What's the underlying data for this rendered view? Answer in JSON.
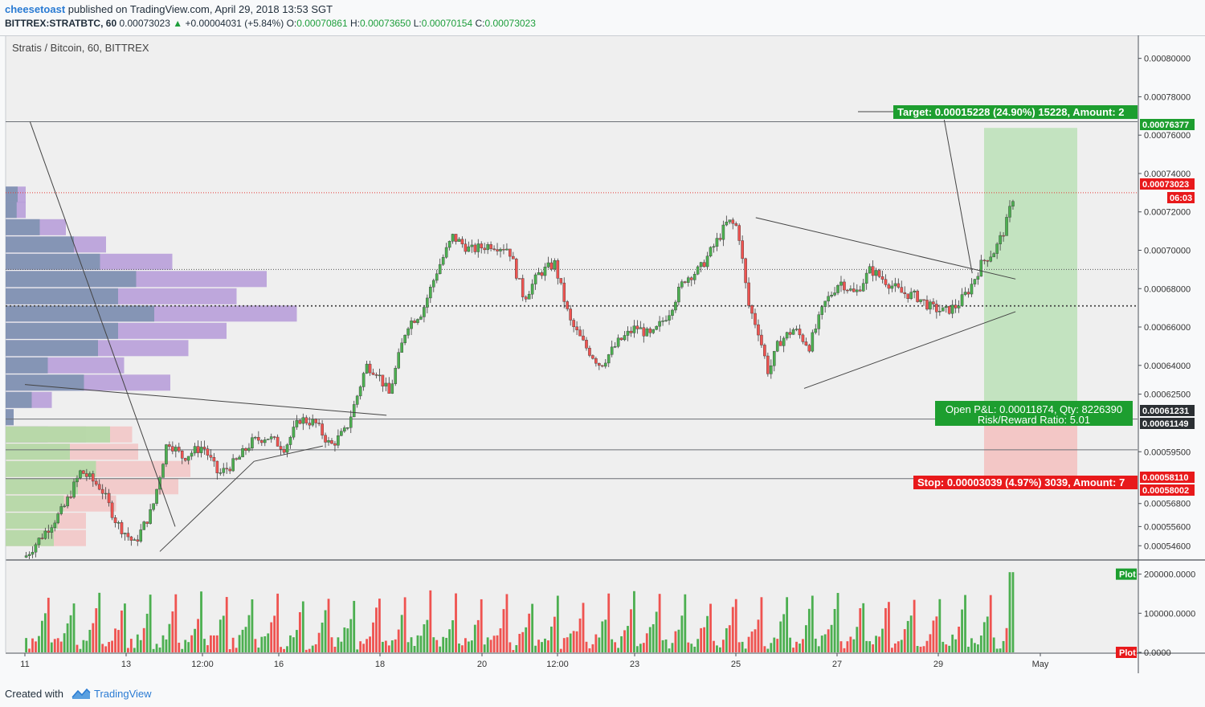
{
  "header": {
    "author": "cheesetoast",
    "published": "published on TradingView.com, April 29, 2018 13:53 SGT",
    "symbol": "BITTREX:STRATBTC, 60",
    "last": "0.00073023",
    "change": "+0.00004031 (+5.84%)",
    "o_label": "O:",
    "o": "0.00070861",
    "h_label": "H:",
    "h": "0.00073650",
    "l_label": "L:",
    "l": "0.00070154",
    "c_label": "C:",
    "c": "0.00073023"
  },
  "chart_title": "Stratis / Bitcoin, 60, BITTREX",
  "footer": {
    "created": "Created with",
    "brand": "TradingView"
  },
  "colors": {
    "up": "#4caf50",
    "down": "#ef5350",
    "target": "#1d9e2f",
    "stop": "#e8191b",
    "vp_blue": "#7e93b0",
    "vp_purple": "#b59ad8"
  },
  "chart_data": {
    "type": "candlestick",
    "price_axis": {
      "ticks": [
        "0.00080000",
        "0.00078000",
        "0.00076000",
        "0.00074000",
        "0.00072000",
        "0.00070000",
        "0.00068000",
        "0.00066000",
        "0.00064000",
        "0.00062500",
        "0.00059500",
        "0.00056800",
        "0.00055600",
        "0.00054600"
      ],
      "ylim": [
        0.000539,
        0.000812
      ]
    },
    "time_axis": [
      "11",
      "13",
      "12:00",
      "16",
      "18",
      "20",
      "12:00",
      "23",
      "25",
      "27",
      "29",
      "May"
    ],
    "price_labels": [
      {
        "text": "0.00076377",
        "style": "green"
      },
      {
        "text": "0.00073023",
        "style": "red"
      },
      {
        "text": "06:03",
        "style": "red"
      },
      {
        "text": "0.00061231",
        "style": "dark"
      },
      {
        "text": "0.00061149",
        "style": "dark"
      },
      {
        "text": "0.00058110",
        "style": "red"
      },
      {
        "text": "0.00058002",
        "style": "red"
      }
    ],
    "position": {
      "entry": 0.00061149,
      "target_price": 0.00076377,
      "stop_price": 0.0005811,
      "target_label": "Target: 0.00015228 (24.90%) 15228, Amount: 2",
      "stop_label": "Stop: 0.00003039 (4.97%) 3039, Amount: 7",
      "pnl_label": "Open P&L: 0.00011874, Qty: 8226390",
      "rr_label": "Risk/Reward Ratio: 5.01"
    },
    "price_path": [
      [
        0,
        0.00054
      ],
      [
        1.5,
        0.000565
      ],
      [
        2.2,
        0.000585
      ],
      [
        3,
        0.000576
      ],
      [
        3.6,
        0.000558
      ],
      [
        4.3,
        0.000547
      ],
      [
        5.0,
        0.000565
      ],
      [
        5.6,
        0.000601
      ],
      [
        6.2,
        0.000592
      ],
      [
        7,
        0.000598
      ],
      [
        7.6,
        0.000583
      ],
      [
        8.3,
        0.00059
      ],
      [
        8.9,
        0.0006
      ],
      [
        9.5,
        0.000603
      ],
      [
        10.2,
        0.000597
      ],
      [
        10.8,
        0.000612
      ],
      [
        11.4,
        0.00061
      ],
      [
        12.0,
        0.000598
      ],
      [
        12.6,
        0.000606
      ],
      [
        13.0,
        0.000622
      ],
      [
        13.4,
        0.00064
      ],
      [
        13.8,
        0.000637
      ],
      [
        14.3,
        0.000625
      ],
      [
        15.0,
        0.000661
      ],
      [
        15.6,
        0.000668
      ],
      [
        16.2,
        0.00069
      ],
      [
        16.8,
        0.000707
      ],
      [
        17.5,
        0.0007
      ],
      [
        18.3,
        0.000703
      ],
      [
        19.0,
        0.000701
      ],
      [
        19.6,
        0.000675
      ],
      [
        20.2,
        0.000688
      ],
      [
        20.8,
        0.000693
      ],
      [
        21.4,
        0.000663
      ],
      [
        22.0,
        0.00065
      ],
      [
        22.6,
        0.00064
      ],
      [
        23.3,
        0.000652
      ],
      [
        24.0,
        0.00066
      ],
      [
        24.6,
        0.000655
      ],
      [
        25.3,
        0.000668
      ],
      [
        25.9,
        0.000685
      ],
      [
        26.5,
        0.00069
      ],
      [
        27.1,
        0.000703
      ],
      [
        27.6,
        0.000715
      ],
      [
        28.0,
        0.000712
      ],
      [
        28.4,
        0.000672
      ],
      [
        28.8,
        0.000658
      ],
      [
        29.2,
        0.000636
      ],
      [
        29.6,
        0.000652
      ],
      [
        30.2,
        0.000659
      ],
      [
        30.8,
        0.00065
      ],
      [
        31.4,
        0.000672
      ],
      [
        32.0,
        0.000684
      ],
      [
        32.6,
        0.000677
      ],
      [
        33.2,
        0.00069
      ],
      [
        33.8,
        0.000684
      ],
      [
        34.4,
        0.000678
      ],
      [
        35.0,
        0.000676
      ],
      [
        35.6,
        0.00067
      ],
      [
        36.1,
        0.000668
      ],
      [
        36.6,
        0.000671
      ],
      [
        37.1,
        0.00068
      ],
      [
        37.6,
        0.000694
      ],
      [
        38.1,
        0.0007
      ],
      [
        38.5,
        0.000712
      ],
      [
        38.85,
        0.00073
      ]
    ],
    "lines": [
      {
        "from": [
          0.2,
          0.000767
        ],
        "to": [
          5.9,
          0.000556
        ]
      },
      {
        "from": [
          0,
          0.00063
        ],
        "to": [
          14.2,
          0.000614
        ]
      },
      {
        "from": [
          5.3,
          0.000543
        ],
        "to": [
          9.0,
          0.00059
        ]
      },
      {
        "from": [
          9.0,
          0.00059
        ],
        "to": [
          11.7,
          0.000598
        ]
      },
      {
        "from": [
          28.7,
          0.000717
        ],
        "to": [
          38.9,
          0.000685
        ]
      },
      {
        "from": [
          30.6,
          0.000628
        ],
        "to": [
          38.9,
          0.000668
        ]
      },
      {
        "from": [
          36.1,
          0.000768
        ],
        "to": [
          37.2,
          0.000688
        ]
      }
    ],
    "horizontal_levels": [
      0.000767,
      0.00073,
      0.00069,
      0.000671,
      0.000612,
      0.000596,
      0.000581
    ],
    "volume_axis": [
      "200000.0000",
      "100000.0000",
      "0.0000"
    ],
    "volume_ylim": [
      0,
      230000
    ],
    "volume_labels": [
      "Plot",
      "Plot"
    ],
    "volume_profile": [
      [
        0.000729,
        0.6,
        1.0
      ],
      [
        0.000721,
        0.55,
        1.0
      ],
      [
        0.000712,
        1.7,
        3.0
      ],
      [
        0.000703,
        3.4,
        5.0
      ],
      [
        0.000694,
        4.7,
        8.3
      ],
      [
        0.000685,
        6.5,
        13.0
      ],
      [
        0.000676,
        5.6,
        11.5
      ],
      [
        0.000667,
        7.4,
        14.5
      ],
      [
        0.000658,
        5.6,
        11.0
      ],
      [
        0.000649,
        4.6,
        9.1
      ],
      [
        0.00064,
        2.1,
        5.9
      ],
      [
        0.000631,
        3.9,
        8.2
      ],
      [
        0.000622,
        1.3,
        2.3
      ],
      [
        0.000613,
        0.4,
        0.4
      ],
      [
        0.000604,
        2.1,
        4.0
      ],
      [
        0.000595,
        0,
        0
      ],
      [
        0.000586,
        0,
        0
      ],
      [
        0.000577,
        0,
        0
      ],
      [
        0.000568,
        0,
        0
      ],
      [
        0.000559,
        0,
        0
      ],
      [
        0.00055,
        0,
        0
      ]
    ],
    "volume_profile_low": [
      [
        0.000604,
        5.2,
        6.3
      ],
      [
        0.000595,
        3.2,
        6.6
      ],
      [
        0.000586,
        4.5,
        9.2
      ],
      [
        0.000577,
        3.6,
        8.6
      ],
      [
        0.000568,
        2.9,
        5.5
      ],
      [
        0.000559,
        2.6,
        4.0
      ],
      [
        0.00055,
        2.4,
        4.0
      ]
    ]
  }
}
